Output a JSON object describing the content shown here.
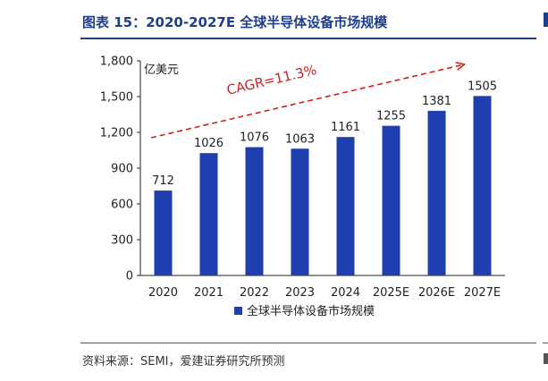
{
  "figure": {
    "title": "图表 15：2020-2027E 全球半导体设备市场规模",
    "source": "资料来源：SEMI，爱建证券研究所预测"
  },
  "chart_data": {
    "type": "bar",
    "categories": [
      "2020",
      "2021",
      "2022",
      "2023",
      "2024",
      "2025E",
      "2026E",
      "2027E"
    ],
    "series": [
      {
        "name": "全球半导体设备市场规模",
        "values": [
          712,
          1026,
          1076,
          1063,
          1161,
          1255,
          1381,
          1505
        ],
        "color": "#1f3eb0"
      }
    ],
    "value_labels": [
      "712",
      "1026",
      "1076",
      "1063",
      "1161",
      "1255",
      "1381",
      "1505"
    ],
    "ylim": [
      0,
      1800
    ],
    "yticks": [
      0,
      300,
      600,
      900,
      1200,
      1500,
      1800
    ],
    "ytick_labels": [
      "0",
      "300",
      "600",
      "900",
      "1,200",
      "1,500",
      "1,800"
    ],
    "unit_label": "亿美元",
    "annotation": {
      "text": "CAGR=11.3%",
      "color": "#cc2222"
    },
    "grid": false,
    "legend_position": "bottom"
  }
}
